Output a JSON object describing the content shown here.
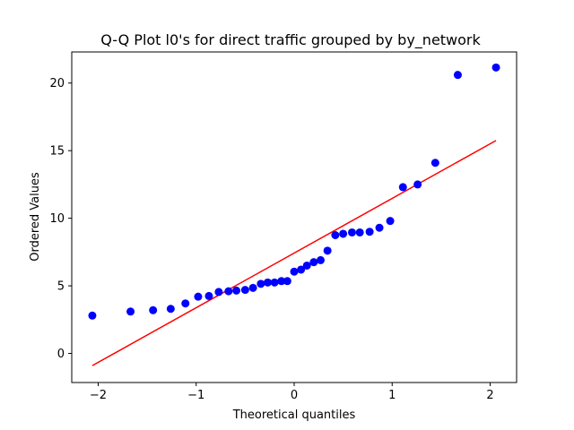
{
  "chart_data": {
    "type": "scatter",
    "title": "Q-Q Plot l0's for direct traffic grouped by by_network",
    "xlabel": "Theoretical quantiles",
    "ylabel": "Ordered Values",
    "xlim": [
      -2.27,
      2.27
    ],
    "ylim": [
      -2.15,
      22.3
    ],
    "xticks": [
      -2,
      -1,
      0,
      1,
      2
    ],
    "xtick_labels": [
      "−2",
      "−1",
      "0",
      "1",
      "2"
    ],
    "yticks": [
      0,
      5,
      10,
      15,
      20
    ],
    "ytick_labels": [
      "0",
      "5",
      "10",
      "15",
      "20"
    ],
    "grid": false,
    "points": {
      "color": "#0000ff",
      "x": [
        -2.06,
        -1.67,
        -1.44,
        -1.26,
        -1.11,
        -0.98,
        -0.87,
        -0.77,
        -0.67,
        -0.59,
        -0.5,
        -0.42,
        -0.34,
        -0.27,
        -0.2,
        -0.13,
        -0.07,
        0.0,
        0.07,
        0.13,
        0.2,
        0.27,
        0.34,
        0.42,
        0.5,
        0.59,
        0.67,
        0.77,
        0.87,
        0.98,
        1.11,
        1.26,
        1.44,
        1.67,
        2.06
      ],
      "y": [
        2.8,
        3.1,
        3.2,
        3.3,
        3.7,
        4.2,
        4.25,
        4.55,
        4.6,
        4.65,
        4.7,
        4.85,
        5.15,
        5.25,
        5.25,
        5.35,
        5.35,
        6.05,
        6.2,
        6.5,
        6.75,
        6.9,
        7.6,
        8.75,
        8.85,
        8.95,
        8.95,
        9.0,
        9.3,
        9.8,
        12.3,
        12.5,
        14.1,
        20.6,
        21.15
      ]
    },
    "fit_line": {
      "color": "#ff0000",
      "x": [
        -2.06,
        2.06
      ],
      "y": [
        -0.9,
        15.75
      ]
    }
  }
}
